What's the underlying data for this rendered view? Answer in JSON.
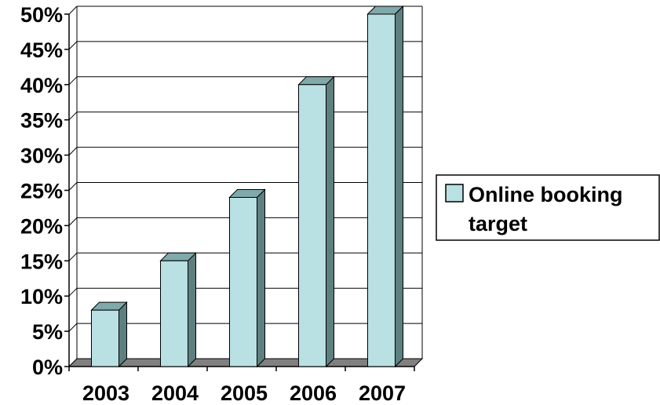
{
  "chart_data": {
    "type": "bar",
    "categories": [
      "2003",
      "2004",
      "2005",
      "2006",
      "2007"
    ],
    "series": [
      {
        "name": "Online booking target",
        "values": [
          8,
          15,
          24,
          40,
          50
        ],
        "color": "#b9e0e3"
      }
    ],
    "ylim": [
      0,
      50
    ],
    "yticks": [
      "0%",
      "5%",
      "10%",
      "15%",
      "20%",
      "25%",
      "30%",
      "35%",
      "40%",
      "45%",
      "50%"
    ],
    "grid": true,
    "legend_position": "right",
    "three_d": true,
    "colors": {
      "bar_front": "#b9e0e3",
      "bar_side": "#5e7f80",
      "bar_top": "#7fa9ab",
      "floor": "#808080",
      "grid": "#000000"
    }
  },
  "legend": {
    "line1": "Online booking",
    "line2": "target"
  }
}
